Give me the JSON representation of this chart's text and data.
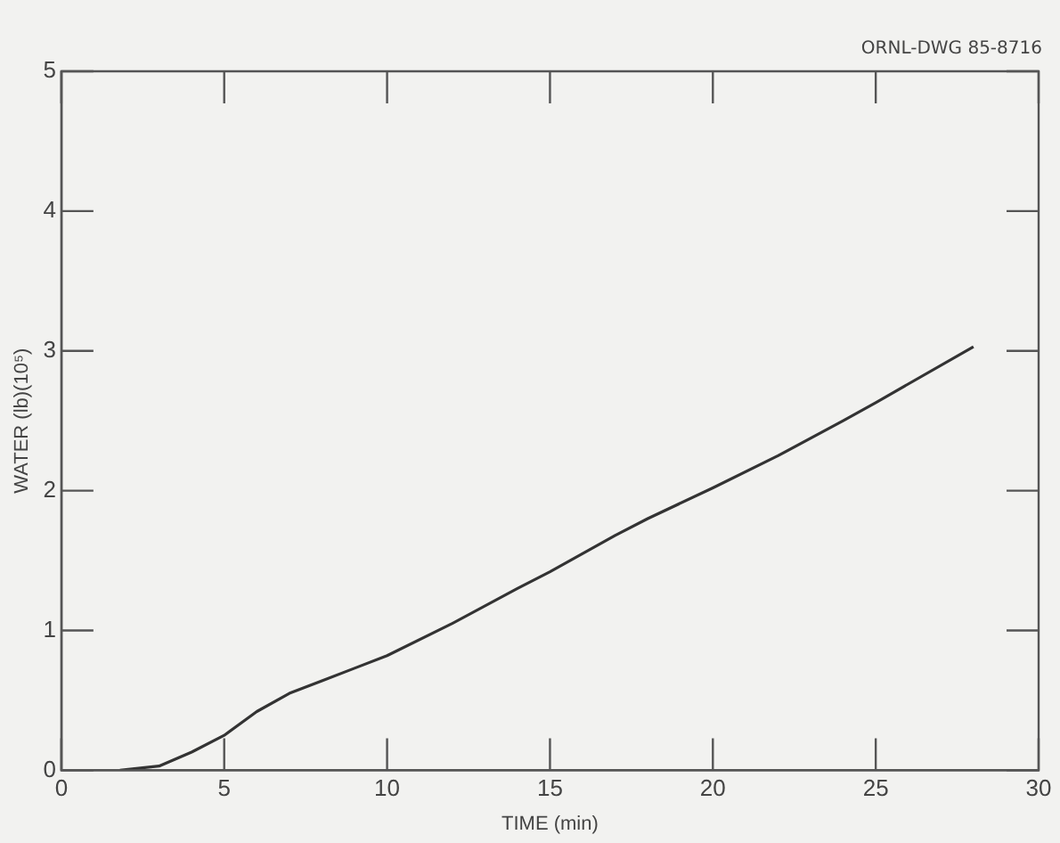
{
  "chart_data": {
    "type": "line",
    "xlabel": "TIME (min)",
    "ylabel": "WATER (lb)(10⁵)",
    "annotations": [
      "ORNL-DWG 85-8716"
    ],
    "x": [
      1.8,
      3,
      4,
      5,
      6,
      7,
      8,
      9,
      10,
      12,
      14,
      15,
      17,
      18,
      20,
      22,
      24,
      25,
      28
    ],
    "series": [
      {
        "color": "#333333",
        "values": [
          0,
          0.03,
          0.13,
          0.25,
          0.42,
          0.55,
          0.64,
          0.73,
          0.82,
          1.05,
          1.3,
          1.42,
          1.68,
          1.8,
          2.02,
          2.25,
          2.5,
          2.63,
          3.03
        ]
      }
    ],
    "xlim": [
      0,
      30
    ],
    "xticks": [
      0,
      5,
      10,
      15,
      20,
      25,
      30
    ],
    "ylim": [
      0,
      5
    ],
    "yticks": [
      0,
      1,
      2,
      3,
      4,
      5
    ],
    "grid": false,
    "legend": false,
    "marker": "none",
    "line_style": "solid"
  }
}
